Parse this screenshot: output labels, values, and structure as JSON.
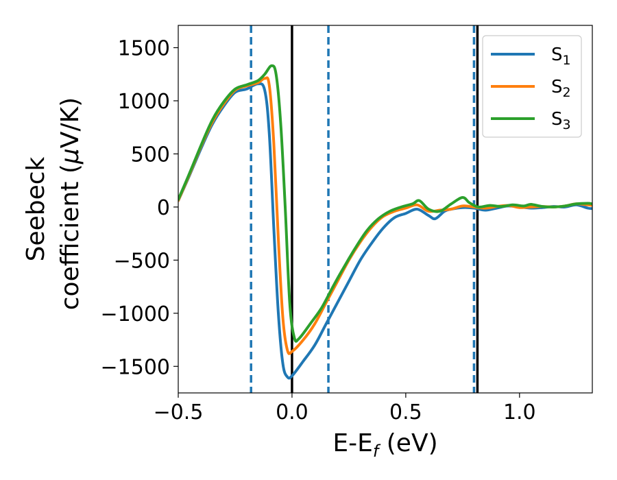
{
  "chart_data": {
    "type": "line",
    "xlabel_main": "E-E",
    "xlabel_sub": "f",
    "xlabel_unit": " (eV)",
    "ylabel_line1": "Seebeck",
    "ylabel_line2": "coefficient  (",
    "ylabel_mu": "μ",
    "ylabel_unit": "V/K)",
    "xlim": [
      -0.5,
      1.32
    ],
    "ylim": [
      -1750,
      1710
    ],
    "xticks": [
      -0.5,
      0.0,
      0.5,
      1.0
    ],
    "xtick_labels": [
      "−0.5",
      "0.0",
      "0.5",
      "1.0"
    ],
    "yticks": [
      1500,
      1000,
      500,
      0,
      -500,
      -1000,
      -1500
    ],
    "ytick_labels": [
      "1500",
      "1000",
      "500",
      "0",
      "−500",
      "−1000",
      "−1500"
    ],
    "grid": false,
    "legend_position": "top-right",
    "vlines": [
      {
        "x": -0.18,
        "style": "dashed",
        "color": "#1f77b4"
      },
      {
        "x": 0.16,
        "style": "dashed",
        "color": "#1f77b4"
      },
      {
        "x": 0.8,
        "style": "dashed",
        "color": "#1f77b4"
      },
      {
        "x": 0.0,
        "style": "solid",
        "color": "#000000"
      },
      {
        "x": 0.815,
        "style": "solid",
        "color": "#000000"
      }
    ],
    "series": [
      {
        "name": "S",
        "sub": "1",
        "color": "#1f77b4",
        "points": [
          [
            -0.5,
            60
          ],
          [
            -0.45,
            300
          ],
          [
            -0.4,
            550
          ],
          [
            -0.35,
            780
          ],
          [
            -0.3,
            950
          ],
          [
            -0.25,
            1080
          ],
          [
            -0.2,
            1110
          ],
          [
            -0.15,
            1160
          ],
          [
            -0.12,
            1100
          ],
          [
            -0.1,
            700
          ],
          [
            -0.08,
            -200
          ],
          [
            -0.06,
            -1000
          ],
          [
            -0.04,
            -1480
          ],
          [
            -0.02,
            -1600
          ],
          [
            0.0,
            -1590
          ],
          [
            0.05,
            -1450
          ],
          [
            0.1,
            -1300
          ],
          [
            0.15,
            -1100
          ],
          [
            0.2,
            -900
          ],
          [
            0.25,
            -700
          ],
          [
            0.3,
            -500
          ],
          [
            0.35,
            -340
          ],
          [
            0.4,
            -200
          ],
          [
            0.45,
            -100
          ],
          [
            0.5,
            -60
          ],
          [
            0.55,
            -20
          ],
          [
            0.6,
            -80
          ],
          [
            0.63,
            -110
          ],
          [
            0.67,
            -40
          ],
          [
            0.7,
            -20
          ],
          [
            0.75,
            -5
          ],
          [
            0.8,
            -10
          ],
          [
            0.85,
            -30
          ],
          [
            0.9,
            -10
          ],
          [
            0.95,
            10
          ],
          [
            1.0,
            0
          ],
          [
            1.05,
            -10
          ],
          [
            1.1,
            -5
          ],
          [
            1.15,
            5
          ],
          [
            1.2,
            0
          ],
          [
            1.25,
            20
          ],
          [
            1.3,
            -10
          ],
          [
            1.32,
            -15
          ]
        ]
      },
      {
        "name": "S",
        "sub": "2",
        "color": "#ff7f0e",
        "points": [
          [
            -0.5,
            60
          ],
          [
            -0.45,
            310
          ],
          [
            -0.4,
            570
          ],
          [
            -0.35,
            800
          ],
          [
            -0.3,
            970
          ],
          [
            -0.25,
            1100
          ],
          [
            -0.2,
            1140
          ],
          [
            -0.15,
            1170
          ],
          [
            -0.12,
            1210
          ],
          [
            -0.1,
            1150
          ],
          [
            -0.08,
            600
          ],
          [
            -0.06,
            -300
          ],
          [
            -0.04,
            -1050
          ],
          [
            -0.02,
            -1350
          ],
          [
            0.0,
            -1360
          ],
          [
            0.05,
            -1250
          ],
          [
            0.1,
            -1100
          ],
          [
            0.15,
            -900
          ],
          [
            0.2,
            -700
          ],
          [
            0.25,
            -500
          ],
          [
            0.3,
            -330
          ],
          [
            0.35,
            -190
          ],
          [
            0.4,
            -90
          ],
          [
            0.45,
            -40
          ],
          [
            0.5,
            -10
          ],
          [
            0.55,
            20
          ],
          [
            0.6,
            -40
          ],
          [
            0.65,
            -30
          ],
          [
            0.7,
            -20
          ],
          [
            0.75,
            10
          ],
          [
            0.8,
            0
          ],
          [
            0.85,
            -10
          ],
          [
            0.9,
            5
          ],
          [
            0.95,
            15
          ],
          [
            1.0,
            -5
          ],
          [
            1.05,
            0
          ],
          [
            1.1,
            5
          ],
          [
            1.15,
            0
          ],
          [
            1.2,
            10
          ],
          [
            1.25,
            30
          ],
          [
            1.3,
            20
          ],
          [
            1.32,
            15
          ]
        ]
      },
      {
        "name": "S",
        "sub": "3",
        "color": "#2ca02c",
        "points": [
          [
            -0.5,
            70
          ],
          [
            -0.45,
            320
          ],
          [
            -0.4,
            580
          ],
          [
            -0.35,
            820
          ],
          [
            -0.3,
            990
          ],
          [
            -0.25,
            1110
          ],
          [
            -0.2,
            1150
          ],
          [
            -0.15,
            1190
          ],
          [
            -0.12,
            1250
          ],
          [
            -0.09,
            1330
          ],
          [
            -0.07,
            1250
          ],
          [
            -0.05,
            800
          ],
          [
            -0.03,
            0
          ],
          [
            -0.01,
            -900
          ],
          [
            0.01,
            -1230
          ],
          [
            0.03,
            -1240
          ],
          [
            0.08,
            -1100
          ],
          [
            0.13,
            -950
          ],
          [
            0.18,
            -750
          ],
          [
            0.23,
            -560
          ],
          [
            0.28,
            -380
          ],
          [
            0.33,
            -220
          ],
          [
            0.38,
            -110
          ],
          [
            0.43,
            -40
          ],
          [
            0.48,
            0
          ],
          [
            0.53,
            30
          ],
          [
            0.56,
            60
          ],
          [
            0.6,
            -20
          ],
          [
            0.65,
            -40
          ],
          [
            0.7,
            30
          ],
          [
            0.75,
            90
          ],
          [
            0.78,
            40
          ],
          [
            0.82,
            0
          ],
          [
            0.87,
            15
          ],
          [
            0.92,
            5
          ],
          [
            0.97,
            20
          ],
          [
            1.02,
            10
          ],
          [
            1.05,
            25
          ],
          [
            1.1,
            5
          ],
          [
            1.15,
            0
          ],
          [
            1.2,
            10
          ],
          [
            1.25,
            30
          ],
          [
            1.3,
            35
          ],
          [
            1.32,
            30
          ]
        ]
      }
    ]
  }
}
